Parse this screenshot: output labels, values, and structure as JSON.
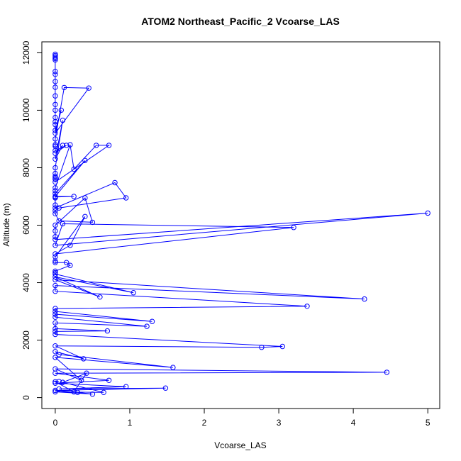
{
  "chart_data": {
    "type": "line",
    "title": "ATOM2 Northeast_Pacific_2 Vcoarse_LAS",
    "xlabel": "Vcoarse_LAS",
    "ylabel": "Altitude (m)",
    "xlim": [
      -0.18,
      5.16
    ],
    "ylim": [
      -380,
      12380
    ],
    "xticks": [
      0,
      1,
      2,
      3,
      4,
      5
    ],
    "yticks": [
      0,
      2000,
      4000,
      6000,
      8000,
      10000,
      12000
    ],
    "grid": false,
    "legend": "none",
    "color": "#0000ff",
    "series": [
      {
        "x": [
          0.0,
          0.0,
          0.0,
          0.0,
          0.0,
          0.0,
          0.0,
          0.0,
          0.0,
          0.0,
          0.0,
          0.0,
          0.0,
          0.0,
          0.0,
          0.0,
          0.08,
          0.0,
          0.45,
          0.12,
          0.0,
          0.0,
          0.0,
          0.0,
          0.15,
          0.0,
          0.1,
          0.0,
          0.1,
          0.0,
          0.0,
          0.0,
          0.0,
          0.0,
          0.0,
          0.72,
          0.55,
          0.25,
          0.2,
          0.0,
          0.0,
          0.0,
          0.4,
          0.0,
          0.25,
          0.0,
          0.0,
          0.0,
          0.0,
          0.8,
          0.95,
          0.05,
          0.0,
          0.0,
          0.05,
          0.5,
          0.4,
          0.0,
          0.0,
          0.0,
          0.0,
          5.0,
          0.0,
          0.1,
          3.2,
          0.0,
          0.2,
          0.4,
          0.0,
          0.0,
          0.0,
          0.15,
          0.2,
          0.0,
          0.0,
          0.0,
          1.05,
          0.0,
          0.6,
          0.0,
          4.15,
          0.0,
          0.0,
          3.38,
          0.0,
          0.0,
          1.3,
          0.0,
          0.0,
          1.23,
          0.0,
          0.0,
          0.7,
          0.0,
          0.0,
          3.05,
          2.77,
          0.0,
          0.38,
          0.0,
          0.05,
          1.58,
          0.0,
          0.35,
          0.0,
          4.45,
          0.0,
          0.72,
          0.0,
          0.95,
          0.05,
          1.48,
          0.0,
          0.3,
          0.5,
          0.0,
          0.65,
          0.1,
          0.42,
          0.25,
          0.0,
          0.05
        ],
        "y": [
          11950,
          11900,
          11850,
          11800,
          11750,
          11350,
          11250,
          11000,
          10800,
          10500,
          10200,
          10000,
          9750,
          9600,
          9500,
          9300,
          10000,
          9200,
          10770,
          10790,
          9000,
          8800,
          8750,
          8600,
          8780,
          8500,
          8780,
          8300,
          9650,
          8000,
          7800,
          7700,
          7650,
          7600,
          7500,
          8780,
          8780,
          7950,
          8800,
          7300,
          7200,
          7100,
          8250,
          7000,
          7000,
          6980,
          6950,
          6700,
          6600,
          7480,
          6950,
          6600,
          6500,
          6400,
          6150,
          6100,
          6950,
          6000,
          5800,
          5600,
          5500,
          6420,
          5300,
          6050,
          5920,
          5000,
          5300,
          6300,
          4900,
          4750,
          4700,
          4700,
          4600,
          4400,
          4350,
          4300,
          3650,
          4200,
          3500,
          4100,
          3430,
          3900,
          3700,
          3180,
          3100,
          3000,
          2650,
          2900,
          2800,
          2480,
          2600,
          2400,
          2320,
          2300,
          2200,
          1780,
          1750,
          1800,
          1350,
          1600,
          1500,
          1050,
          1400,
          600,
          1000,
          880,
          850,
          600,
          500,
          380,
          300,
          330,
          250,
          180,
          120,
          200,
          180,
          530,
          850,
          200,
          550,
          560
        ]
      }
    ]
  }
}
